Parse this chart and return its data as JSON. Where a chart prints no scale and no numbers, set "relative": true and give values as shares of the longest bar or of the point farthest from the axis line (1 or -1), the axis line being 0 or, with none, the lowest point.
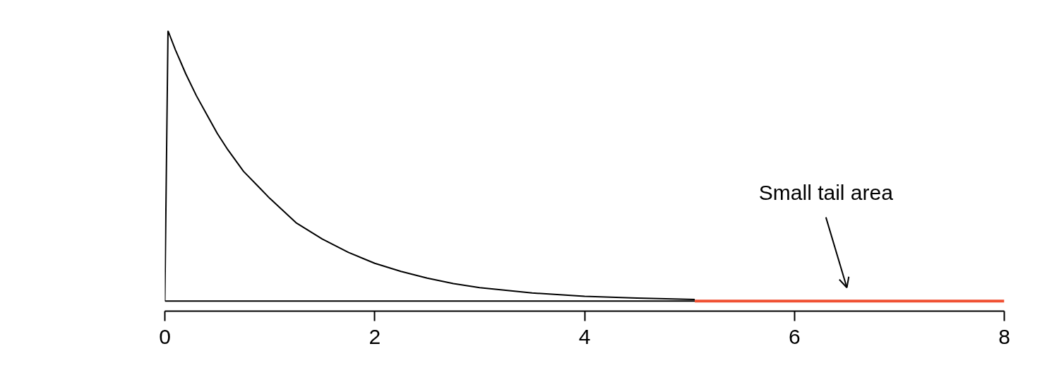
{
  "chart_data": {
    "type": "line",
    "relative": true,
    "xlim": [
      0,
      8
    ],
    "xticks": [
      0,
      2,
      4,
      6,
      8
    ],
    "grid": false,
    "tick_labels": "x",
    "series": [
      {
        "color": "#000000",
        "x": [
          0,
          0.03,
          0.1,
          0.2,
          0.3,
          0.4,
          0.5,
          0.6,
          0.75,
          0.9,
          1,
          1.25,
          1.5,
          1.75,
          2,
          2.25,
          2.5,
          2.75,
          3,
          3.5,
          4,
          4.5,
          5.05
        ],
        "values": [
          0,
          1,
          0.93,
          0.84,
          0.76,
          0.69,
          0.62,
          0.56,
          0.48,
          0.42,
          0.38,
          0.29,
          0.23,
          0.18,
          0.14,
          0.11,
          0.085,
          0.065,
          0.05,
          0.03,
          0.018,
          0.011,
          0.006
        ]
      },
      {
        "color": "#000000",
        "x": [
          0,
          5.05
        ],
        "values": [
          0,
          0
        ]
      },
      {
        "color": "#f05133",
        "x": [
          5.05,
          8
        ],
        "values": [
          0,
          0
        ]
      }
    ],
    "annotations": [
      "Small tail area"
    ]
  }
}
